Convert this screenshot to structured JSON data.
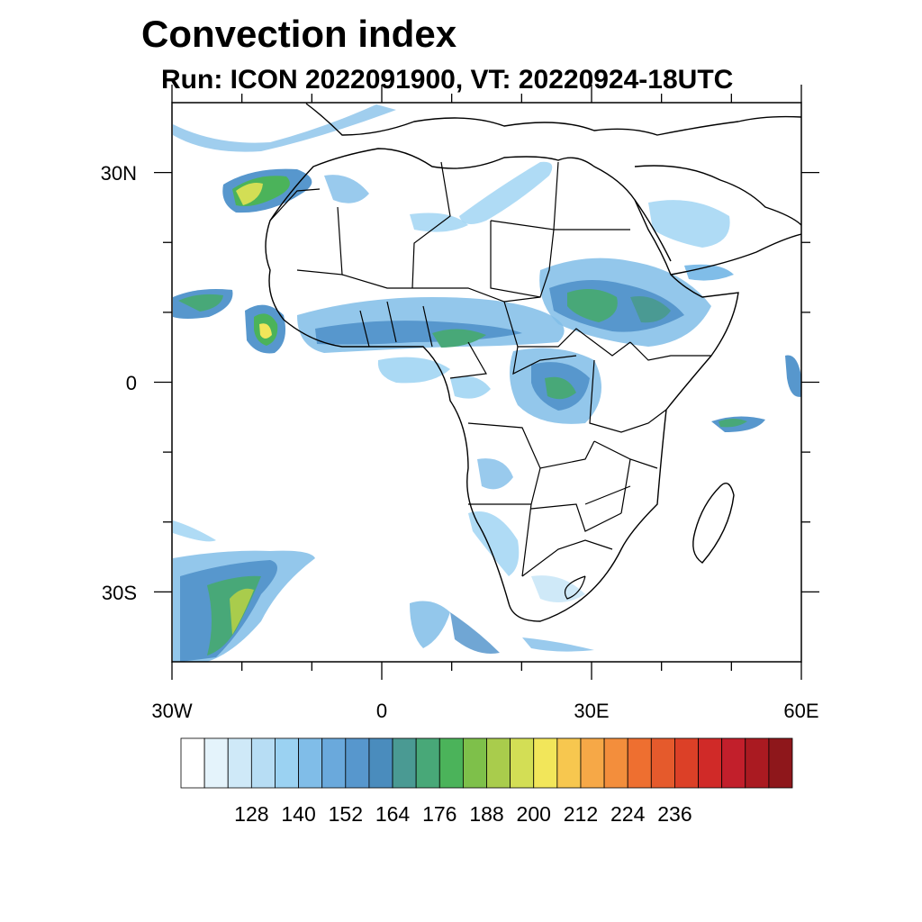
{
  "title": "Convection index",
  "subtitle": "Run: ICON 2022091900,  VT: 20220924-18UTC",
  "map": {
    "lon_range": [
      -30,
      60
    ],
    "lat_range": [
      -40,
      40
    ],
    "x_ticks": [
      {
        "value": -30,
        "label": "30W"
      },
      {
        "value": 0,
        "label": "0"
      },
      {
        "value": 30,
        "label": "30E"
      },
      {
        "value": 60,
        "label": "60E"
      }
    ],
    "y_ticks": [
      {
        "value": 30,
        "label": "30N"
      },
      {
        "value": 0,
        "label": "0"
      },
      {
        "value": -30,
        "label": "30S"
      }
    ],
    "minor_x_ticks": [
      -20,
      -10,
      10,
      20,
      40,
      50
    ],
    "minor_y_ticks": [
      20,
      10,
      -10,
      -20
    ]
  },
  "colorbar": {
    "colors": [
      "#ffffff",
      "#e4f3fb",
      "#cfe9f8",
      "#b7ddf4",
      "#9bd2f2",
      "#80bde8",
      "#6aa9dc",
      "#5797cd",
      "#4a8cbd",
      "#4a9a93",
      "#48a878",
      "#4bb35a",
      "#7ec04a",
      "#a9cc4c",
      "#d3de55",
      "#f2e65a",
      "#f7c74f",
      "#f6a847",
      "#f38e3c",
      "#ee6f30",
      "#e55a2c",
      "#dc4027",
      "#d02a28",
      "#c21f2b",
      "#aa1a21",
      "#8e171b"
    ],
    "labels": [
      "128",
      "140",
      "152",
      "164",
      "176",
      "188",
      "200",
      "212",
      "224",
      "236"
    ]
  }
}
